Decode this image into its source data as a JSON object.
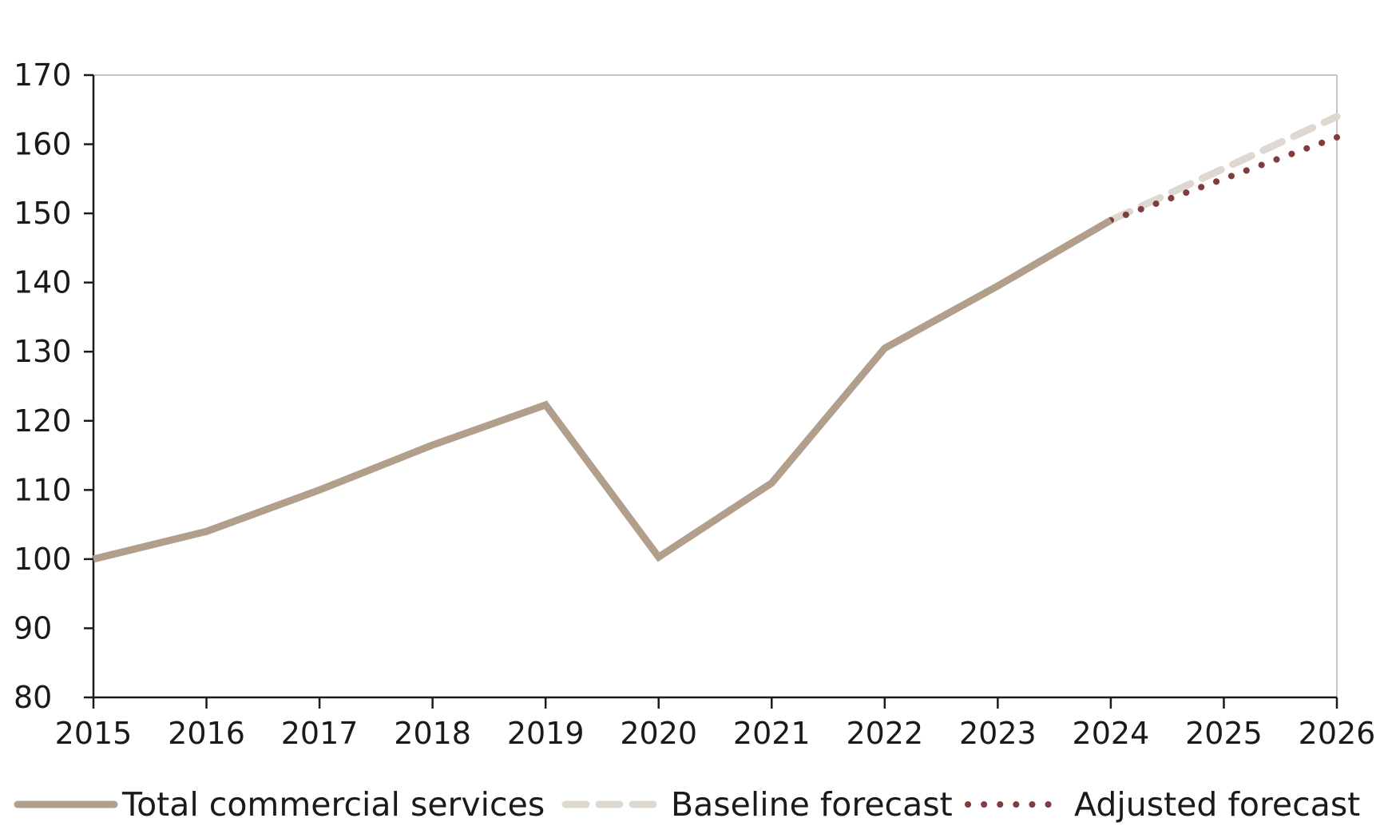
{
  "chart_data": {
    "type": "line",
    "title": "",
    "xlabel": "",
    "ylabel": "",
    "x": [
      2015,
      2016,
      2017,
      2018,
      2019,
      2020,
      2021,
      2022,
      2023,
      2024,
      2025,
      2026
    ],
    "ylim": [
      80,
      170
    ],
    "yticks": [
      80,
      90,
      100,
      110,
      120,
      130,
      140,
      150,
      160,
      170
    ],
    "grid": false,
    "legend_position": "bottom",
    "series": [
      {
        "name": "Total commercial services",
        "style": "solid",
        "color": "#b19f8b",
        "points": [
          {
            "x": 2015,
            "y": 100
          },
          {
            "x": 2016,
            "y": 104
          },
          {
            "x": 2017,
            "y": 110
          },
          {
            "x": 2018,
            "y": 116.5
          },
          {
            "x": 2019,
            "y": 122.3
          },
          {
            "x": 2020,
            "y": 100.3
          },
          {
            "x": 2021,
            "y": 111
          },
          {
            "x": 2022,
            "y": 130.5
          },
          {
            "x": 2023,
            "y": 139.5
          },
          {
            "x": 2024,
            "y": 149
          }
        ]
      },
      {
        "name": "Baseline forecast",
        "style": "dashed",
        "color": "#ded8d1",
        "points": [
          {
            "x": 2024,
            "y": 149
          },
          {
            "x": 2025,
            "y": 156.5
          },
          {
            "x": 2026,
            "y": 164
          }
        ]
      },
      {
        "name": "Adjusted forecast",
        "style": "dotted",
        "color": "#803d3d",
        "points": [
          {
            "x": 2024,
            "y": 149
          },
          {
            "x": 2025,
            "y": 155
          },
          {
            "x": 2026,
            "y": 161
          }
        ]
      }
    ]
  }
}
